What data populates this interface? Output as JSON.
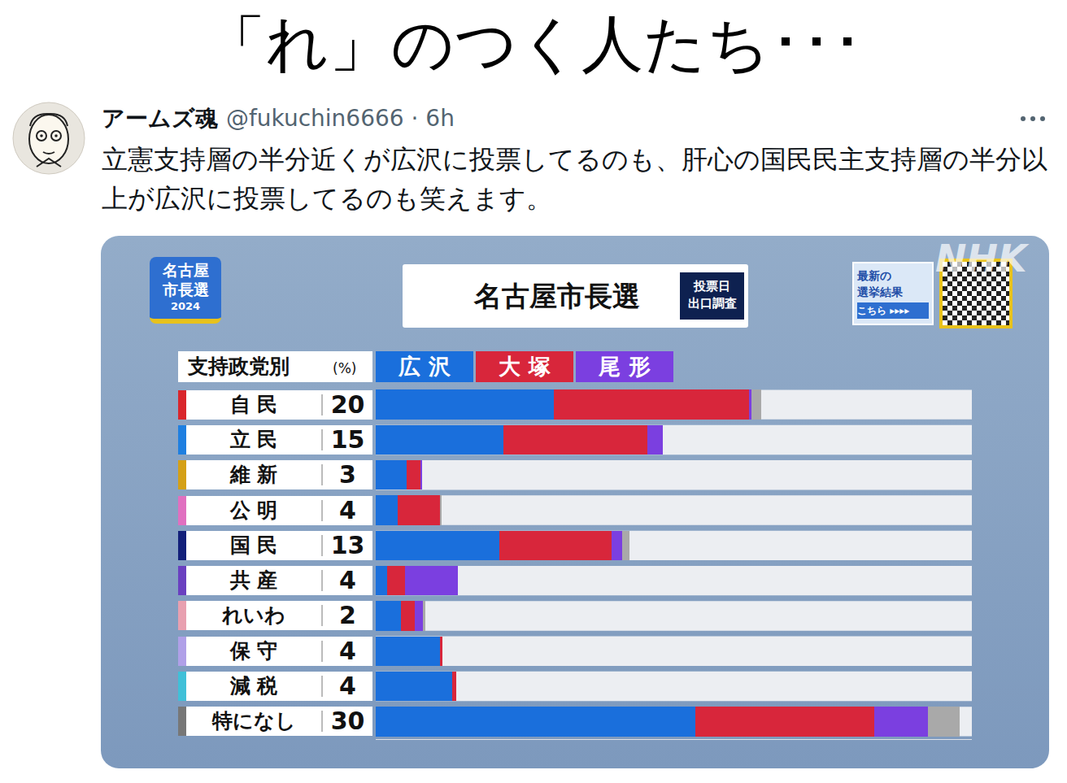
{
  "header": {
    "title": "「れ」のつく人たち･･･"
  },
  "tweet": {
    "user": "アームズ魂",
    "meta": "@fukuchin6666 · 6h",
    "text": "立憲支持層の半分近くが広沢に投票してるのも、肝心の国民民主支持層の半分以上が広沢に投票してるのも笑えます。"
  },
  "panel": {
    "logo": [
      "名古屋",
      "市長選",
      "2024"
    ],
    "badge": [
      "投票日",
      "出口調査"
    ],
    "link": [
      "最新の",
      "選挙結果",
      "こちら ▸▸▸▸"
    ],
    "watermark": "NHK"
  },
  "chart_data": {
    "type": "bar",
    "orientation": "horizontal",
    "stacked": true,
    "title": "名古屋市長選",
    "categories_header": "支持政党別",
    "unit": "(%)",
    "categories": [
      "自 民",
      "立 民",
      "維 新",
      "公 明",
      "国 民",
      "共 産",
      "れいわ",
      "保 守",
      "減 税",
      "特になし"
    ],
    "party_share": [
      20,
      15,
      3,
      4,
      13,
      4,
      2,
      4,
      4,
      30
    ],
    "series": [
      {
        "name": "広 沢",
        "color": "#1a6fdc",
        "values": [
          29.9,
          21.4,
          5.2,
          3.7,
          20.7,
          1.9,
          4.2,
          10.8,
          12.8,
          53.6
        ]
      },
      {
        "name": "大 塚",
        "color": "#d8263b",
        "values": [
          32.7,
          24.1,
          2.3,
          7.1,
          18.8,
          3.0,
          2.3,
          0.4,
          0.7,
          30.0
        ]
      },
      {
        "name": "尾 形",
        "color": "#7b3fe0",
        "values": [
          0.4,
          2.6,
          0.3,
          0,
          1.8,
          8.9,
          1.4,
          0,
          0,
          9.0
        ]
      },
      {
        "color": "#a9a9a9",
        "values": [
          1.6,
          0,
          0,
          0.3,
          1.2,
          0,
          0.4,
          0,
          0,
          5.3
        ]
      }
    ],
    "xlim": [
      0,
      100
    ],
    "xticks": []
  }
}
